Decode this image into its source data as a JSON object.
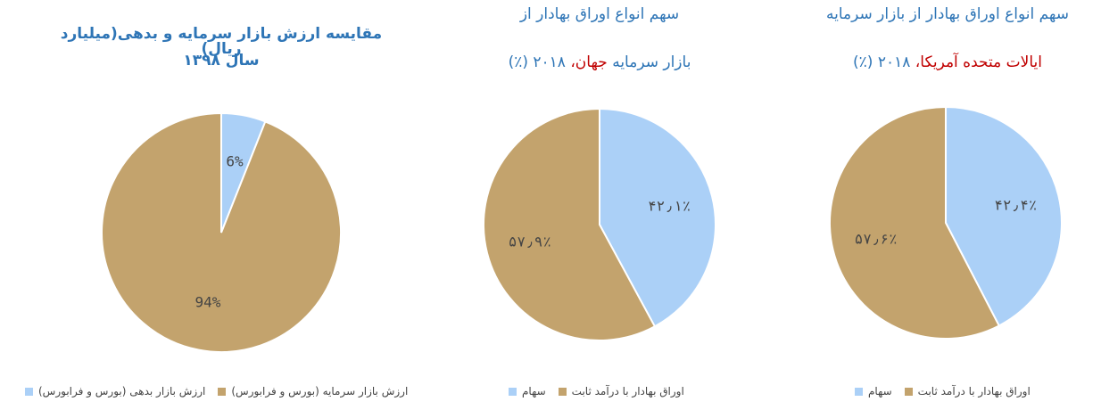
{
  "chart_data": [
    {
      "type": "pie",
      "title": [
        [
          {
            "text": "مقایسه ارزش بازار سرمایه و بدهی(میلیارد ریال)",
            "color": "#2e75b6"
          }
        ],
        [
          {
            "text": "سال ۱۳۹۸",
            "color": "#2e75b6"
          }
        ]
      ],
      "categories": [
        "ارزش بازار بدهی (بورس و فرابورس)",
        "ارزش بازار سرمایه (بورس و فرابورس)"
      ],
      "values": [
        6,
        94
      ],
      "value_labels": [
        "6%",
        "94%"
      ],
      "colors": [
        "#abd0f7",
        "#c3a36d"
      ]
    },
    {
      "type": "pie",
      "title": [
        [
          {
            "text": "سهم انواع اوراق بهادار از",
            "color": "#2e75b6"
          }
        ],
        [
          {
            "text": "بازار سرمایه ",
            "color": "#2e75b6"
          },
          {
            "text": "جهان،",
            "color": "#c00000"
          },
          {
            "text": " ۲۰۱۸ (٪)",
            "color": "#2e75b6"
          }
        ]
      ],
      "categories": [
        "سهام",
        "اوراق بهادار با درآمد ثابت"
      ],
      "values": [
        42.1,
        57.9
      ],
      "value_labels": [
        "۴۲٫۱٪",
        "۵۷٫۹٪"
      ],
      "colors": [
        "#abd0f7",
        "#c3a36d"
      ]
    },
    {
      "type": "pie",
      "title": [
        [
          {
            "text": "سهم انواع اوراق بهادار از بازار سرمایه",
            "color": "#2e75b6"
          }
        ],
        [
          {
            "text": "ایالات متحده آمریکا،",
            "color": "#c00000"
          },
          {
            "text": " ۲۰۱۸ (٪)",
            "color": "#2e75b6"
          }
        ]
      ],
      "categories": [
        "سهام",
        "اوراق بهادار با درآمد ثابت"
      ],
      "values": [
        42.4,
        57.6
      ],
      "value_labels": [
        "۴۲٫۴٪",
        "۵۷٫۶٪"
      ],
      "colors": [
        "#abd0f7",
        "#c3a36d"
      ]
    }
  ]
}
